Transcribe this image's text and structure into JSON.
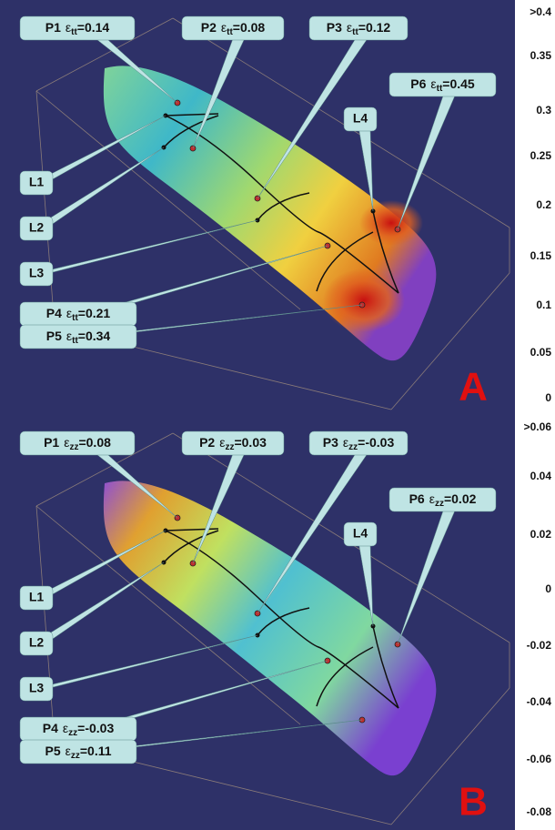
{
  "panels": [
    {
      "letter": "A",
      "points": [
        {
          "name": "P1",
          "symbol": "ε",
          "sub": "tt",
          "value": "=0.14"
        },
        {
          "name": "P2",
          "symbol": "ε",
          "sub": "tt",
          "value": "=0.08"
        },
        {
          "name": "P3",
          "symbol": "ε",
          "sub": "tt",
          "value": "=0.12"
        },
        {
          "name": "P4",
          "symbol": "ε",
          "sub": "tt",
          "value": "=0.21"
        },
        {
          "name": "P5",
          "symbol": "ε",
          "sub": "tt",
          "value": "=0.34"
        },
        {
          "name": "P6",
          "symbol": "ε",
          "sub": "tt",
          "value": "=0.45"
        }
      ],
      "lines": [
        "L1",
        "L2",
        "L3",
        "L4"
      ],
      "scale": [
        ">0.4",
        "0.35",
        "0.3",
        "0.25",
        "0.2",
        "0.15",
        "0.1",
        "0.05",
        "0"
      ]
    },
    {
      "letter": "B",
      "points": [
        {
          "name": "P1",
          "symbol": "ε",
          "sub": "zz",
          "value": "=0.08"
        },
        {
          "name": "P2",
          "symbol": "ε",
          "sub": "zz",
          "value": "=0.03"
        },
        {
          "name": "P3",
          "symbol": "ε",
          "sub": "zz",
          "value": "=-0.03"
        },
        {
          "name": "P4",
          "symbol": "ε",
          "sub": "zz",
          "value": "=-0.03"
        },
        {
          "name": "P5",
          "symbol": "ε",
          "sub": "zz",
          "value": "=0.11"
        },
        {
          "name": "P6",
          "symbol": "ε",
          "sub": "zz",
          "value": "=0.02"
        }
      ],
      "lines": [
        "L1",
        "L2",
        "L3",
        "L4"
      ],
      "scale": [
        ">0.06",
        "0.04",
        "0.02",
        "0",
        "-0.02",
        "-0.04",
        "-0.06",
        "-0.08"
      ]
    }
  ]
}
